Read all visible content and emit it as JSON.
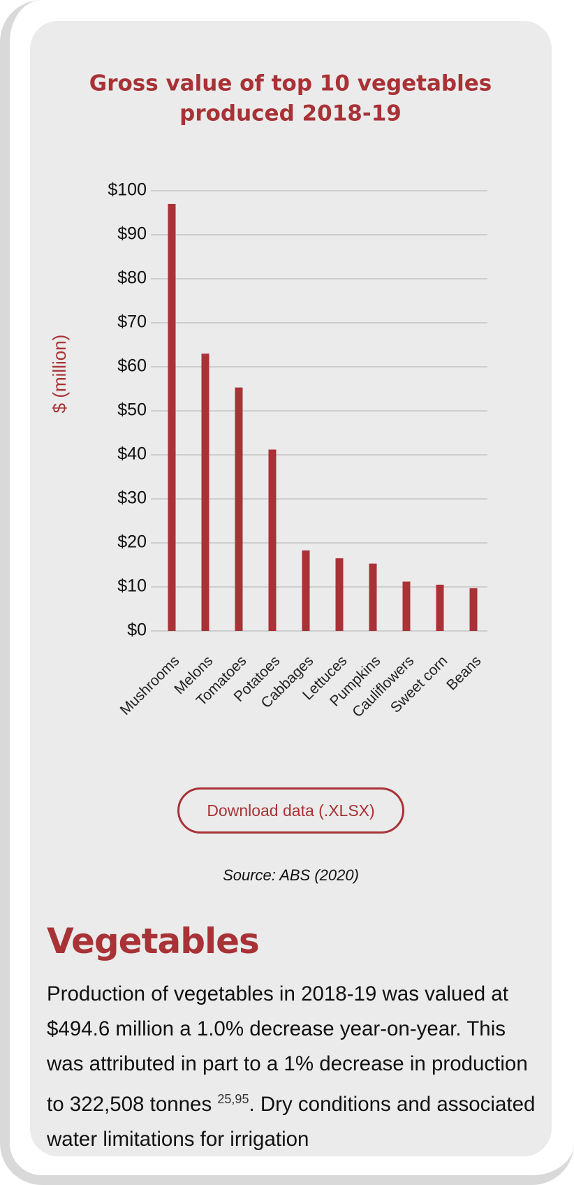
{
  "chart_data": {
    "type": "bar",
    "title_lines": [
      "Gross value of top 10 vegetables",
      "produced 2018-19"
    ],
    "y_label": "$ (million)",
    "categories": [
      "Mushrooms",
      "Melons",
      "Tomatoes",
      "Potatoes",
      "Cabbages",
      "Lettuces",
      "Pumpkins",
      "Cauliflowers",
      "Sweet corn",
      "Beans"
    ],
    "values": [
      97,
      63,
      55.3,
      41.2,
      18.3,
      16.5,
      15.3,
      11.2,
      10.5,
      9.7
    ],
    "color": "#a83236",
    "ylim": [
      0,
      100
    ],
    "yticks": [
      {
        "value": 0,
        "label": "$0"
      },
      {
        "value": 10,
        "label": "$10"
      },
      {
        "value": 20,
        "label": "$20"
      },
      {
        "value": 30,
        "label": "$30"
      },
      {
        "value": 40,
        "label": "$40"
      },
      {
        "value": 50,
        "label": "$50"
      },
      {
        "value": 60,
        "label": "$60"
      },
      {
        "value": 70,
        "label": "$70"
      },
      {
        "value": 80,
        "label": "$80"
      },
      {
        "value": 90,
        "label": "$90"
      },
      {
        "value": 100,
        "label": "$100"
      }
    ],
    "grid": true
  },
  "download_button": "Download data (.XLSX)",
  "source": "Source: ABS (2020)",
  "section": {
    "heading": "Vegetables",
    "text": "Production of vegetables in 2018-19 was valued at $494.6 million a 1.0% decrease year-on-year. This was attributed in part to a 1% decrease in production to 322,508 tonnes ",
    "superscript": "25,95",
    "text_after": ". Dry conditions and associated water limitations for irrigation"
  }
}
